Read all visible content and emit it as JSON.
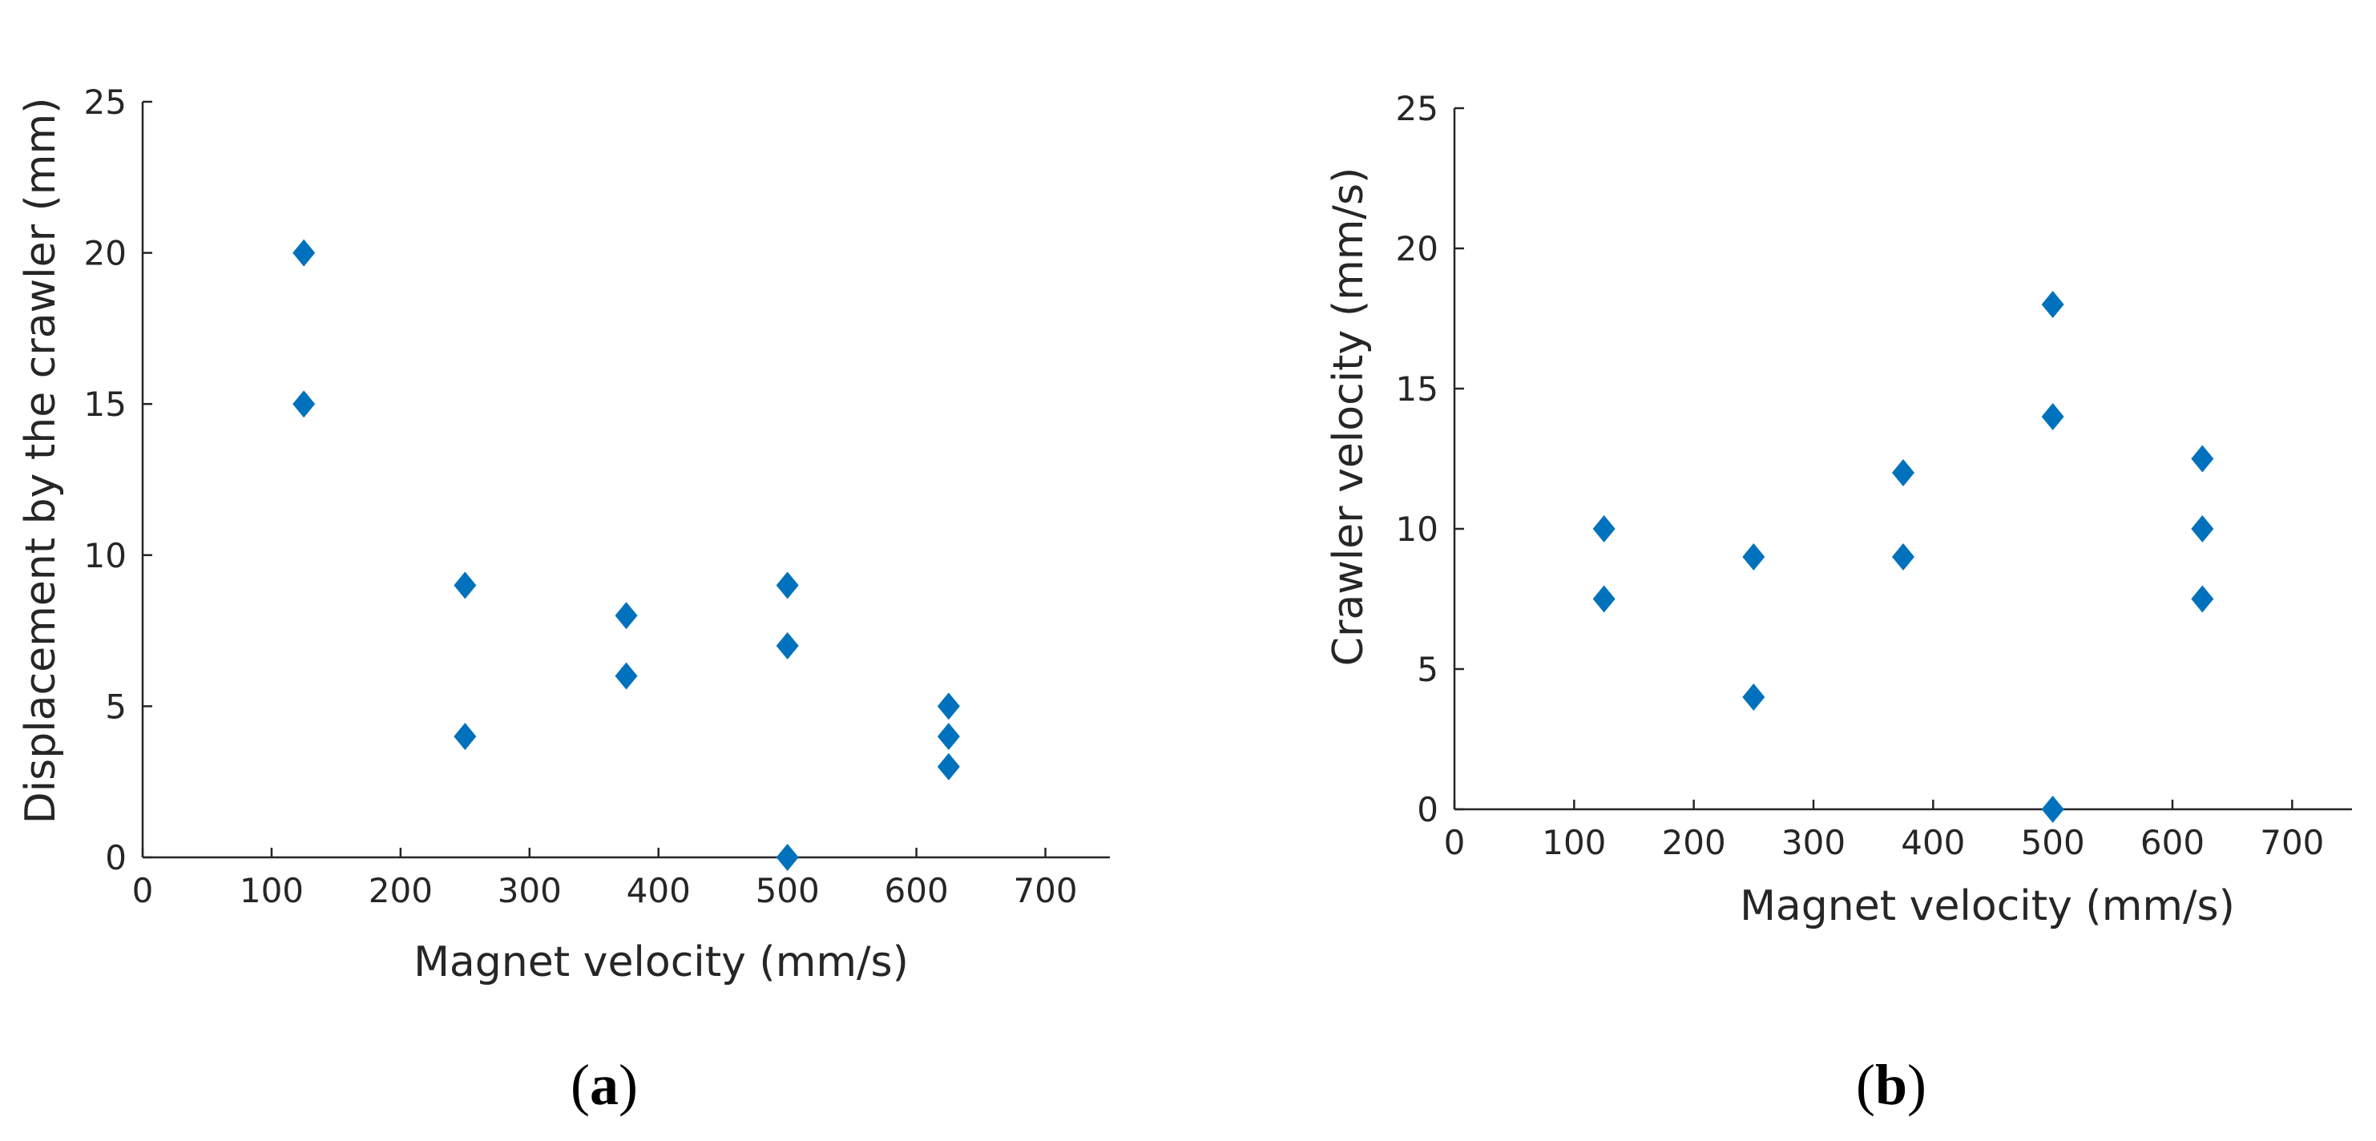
{
  "chart_data": [
    {
      "type": "scatter",
      "panel_label": "a",
      "title": "",
      "xlabel": "Magnet velocity (mm/s)",
      "ylabel": "Displacement by the crawler (mm)",
      "xlim": [
        0,
        750
      ],
      "ylim": [
        0,
        25
      ],
      "xticks": [
        0,
        100,
        200,
        300,
        400,
        500,
        600,
        700
      ],
      "yticks": [
        0,
        5,
        10,
        15,
        20,
        25
      ],
      "marker": "diamond",
      "color": "#0072BD",
      "series": [
        {
          "name": "data",
          "x": [
            125,
            125,
            250,
            250,
            375,
            375,
            500,
            500,
            500,
            625,
            625,
            625
          ],
          "y": [
            20,
            15,
            9,
            4,
            8,
            6,
            9,
            7,
            0,
            5,
            4,
            3
          ]
        }
      ]
    },
    {
      "type": "scatter",
      "panel_label": "b",
      "title": "",
      "xlabel": "Magnet velocity (mm/s)",
      "ylabel": "Crawler velocity (mm/s)",
      "xlim": [
        0,
        750
      ],
      "ylim": [
        0,
        25
      ],
      "xticks": [
        0,
        100,
        200,
        300,
        400,
        500,
        600,
        700
      ],
      "yticks": [
        0,
        5,
        10,
        15,
        20,
        25
      ],
      "marker": "diamond",
      "color": "#0072BD",
      "series": [
        {
          "name": "data",
          "x": [
            125,
            125,
            250,
            250,
            375,
            375,
            500,
            500,
            500,
            625,
            625,
            625
          ],
          "y": [
            10,
            7.5,
            9,
            4,
            12,
            9,
            18,
            14,
            0,
            12.5,
            10,
            7.5
          ]
        }
      ]
    }
  ]
}
